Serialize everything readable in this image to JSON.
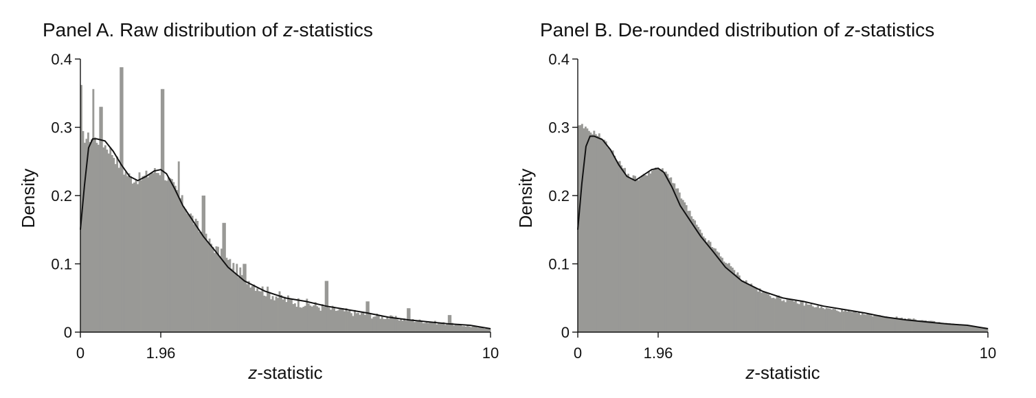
{
  "chart_data": [
    {
      "type": "bar",
      "title_prefix": "Panel A. Raw distribution of ",
      "title_italic": "z",
      "title_suffix": "-statistics",
      "xlabel_italic": "z",
      "xlabel_suffix": "-statistic",
      "ylabel": "Density",
      "xlim": [
        0,
        10
      ],
      "ylim": [
        0,
        0.4
      ],
      "xticks": [
        0,
        1.96,
        10
      ],
      "xtick_labels": [
        "0",
        "1.96",
        "10"
      ],
      "yticks": [
        0,
        0.1,
        0.2,
        0.3,
        0.4
      ],
      "ytick_labels": [
        "0",
        "0.1",
        "0.2",
        "0.3",
        "0.4"
      ],
      "bar_color": "#999996",
      "curve_color": "#111111",
      "histogram_profile": {
        "x": [
          0,
          0.1,
          0.25,
          0.5,
          0.75,
          1.0,
          1.25,
          1.5,
          1.75,
          2.0,
          2.25,
          2.5,
          2.75,
          3.0,
          3.5,
          4.0,
          4.5,
          5.0,
          5.5,
          6.0,
          7.0,
          8.0,
          9.0,
          10.0
        ],
        "density": [
          0.29,
          0.285,
          0.285,
          0.28,
          0.265,
          0.24,
          0.225,
          0.225,
          0.235,
          0.235,
          0.215,
          0.19,
          0.165,
          0.14,
          0.11,
          0.08,
          0.06,
          0.048,
          0.042,
          0.035,
          0.025,
          0.018,
          0.012,
          0.005
        ]
      },
      "spikes": [
        {
          "x": 0.02,
          "density": 0.362
        },
        {
          "x": 0.3,
          "density": 0.356
        },
        {
          "x": 0.5,
          "density": 0.33
        },
        {
          "x": 1.0,
          "density": 0.388
        },
        {
          "x": 2.0,
          "density": 0.356
        },
        {
          "x": 2.4,
          "density": 0.25
        },
        {
          "x": 3.0,
          "density": 0.2
        },
        {
          "x": 3.5,
          "density": 0.16
        },
        {
          "x": 4.0,
          "density": 0.1
        },
        {
          "x": 6.0,
          "density": 0.075
        },
        {
          "x": 7.0,
          "density": 0.045
        },
        {
          "x": 8.0,
          "density": 0.035
        },
        {
          "x": 9.0,
          "density": 0.025
        }
      ],
      "density_curve": {
        "x": [
          0,
          0.1,
          0.2,
          0.3,
          0.4,
          0.6,
          0.8,
          1.0,
          1.2,
          1.4,
          1.6,
          1.8,
          1.96,
          2.1,
          2.3,
          2.5,
          2.8,
          3.0,
          3.3,
          3.6,
          4.0,
          4.5,
          5.0,
          5.5,
          6.0,
          6.5,
          7.0,
          7.5,
          8.0,
          8.5,
          9.0,
          9.5,
          10.0
        ],
        "density": [
          0.15,
          0.215,
          0.27,
          0.283,
          0.283,
          0.28,
          0.265,
          0.245,
          0.228,
          0.222,
          0.228,
          0.236,
          0.238,
          0.232,
          0.21,
          0.185,
          0.158,
          0.14,
          0.118,
          0.095,
          0.075,
          0.06,
          0.05,
          0.045,
          0.038,
          0.033,
          0.028,
          0.022,
          0.018,
          0.015,
          0.012,
          0.01,
          0.005
        ]
      }
    },
    {
      "type": "bar",
      "title_prefix": "Panel B. De-rounded distribution of ",
      "title_italic": "z",
      "title_suffix": "-statistics",
      "xlabel_italic": "z",
      "xlabel_suffix": "-statistic",
      "ylabel": "Density",
      "xlim": [
        0,
        10
      ],
      "ylim": [
        0,
        0.4
      ],
      "xticks": [
        0,
        1.96,
        10
      ],
      "xtick_labels": [
        "0",
        "1.96",
        "10"
      ],
      "yticks": [
        0,
        0.1,
        0.2,
        0.3,
        0.4
      ],
      "ytick_labels": [
        "0",
        "0.1",
        "0.2",
        "0.3",
        "0.4"
      ],
      "bar_color": "#999996",
      "curve_color": "#111111",
      "histogram_profile": {
        "x": [
          0,
          0.1,
          0.25,
          0.5,
          0.75,
          1.0,
          1.25,
          1.5,
          1.75,
          2.0,
          2.25,
          2.5,
          2.75,
          3.0,
          3.5,
          4.0,
          4.5,
          5.0,
          5.5,
          6.0,
          7.0,
          8.0,
          9.0,
          10.0
        ],
        "density": [
          0.3,
          0.302,
          0.295,
          0.29,
          0.272,
          0.25,
          0.228,
          0.225,
          0.235,
          0.24,
          0.228,
          0.2,
          0.172,
          0.145,
          0.11,
          0.078,
          0.058,
          0.048,
          0.042,
          0.035,
          0.026,
          0.02,
          0.013,
          0.006
        ]
      },
      "spikes": [],
      "density_curve": {
        "x": [
          0,
          0.1,
          0.2,
          0.3,
          0.4,
          0.6,
          0.8,
          1.0,
          1.2,
          1.4,
          1.6,
          1.8,
          1.96,
          2.1,
          2.3,
          2.5,
          2.8,
          3.0,
          3.3,
          3.6,
          4.0,
          4.5,
          5.0,
          5.5,
          6.0,
          6.5,
          7.0,
          7.5,
          8.0,
          8.5,
          9.0,
          9.5,
          10.0
        ],
        "density": [
          0.15,
          0.218,
          0.272,
          0.287,
          0.287,
          0.282,
          0.267,
          0.245,
          0.228,
          0.222,
          0.23,
          0.238,
          0.24,
          0.234,
          0.212,
          0.185,
          0.158,
          0.14,
          0.118,
          0.095,
          0.075,
          0.06,
          0.05,
          0.045,
          0.038,
          0.033,
          0.028,
          0.022,
          0.018,
          0.015,
          0.012,
          0.01,
          0.005
        ]
      }
    }
  ]
}
